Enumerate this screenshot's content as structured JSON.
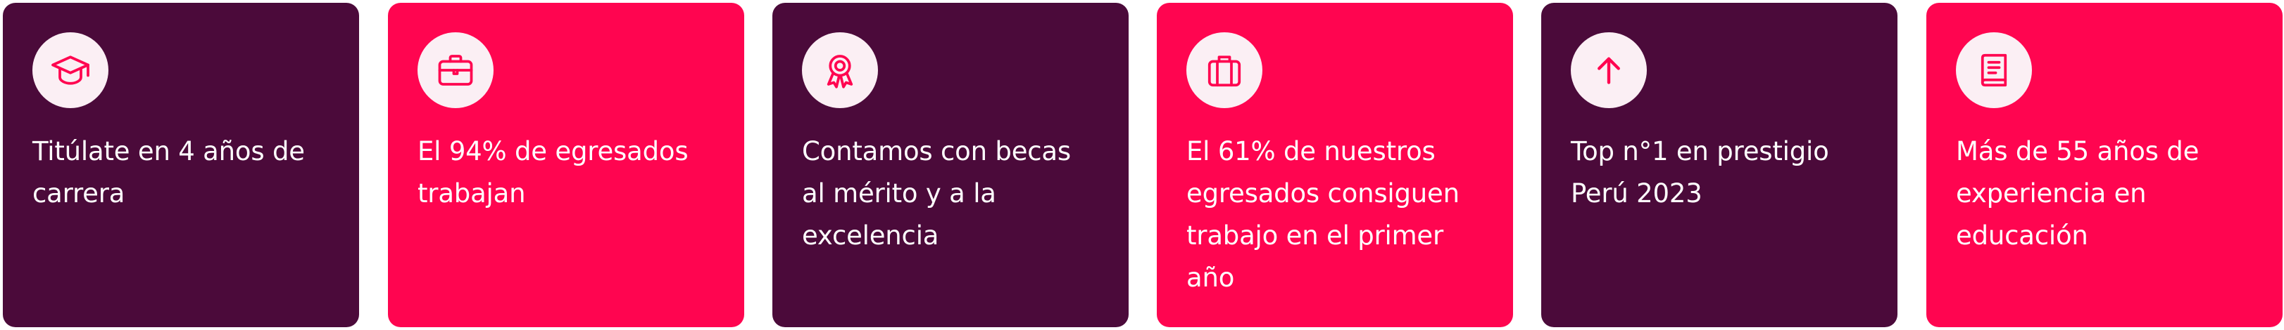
{
  "brand": {
    "dark": "#4b0a3a",
    "pink": "#ff0550",
    "icon_bg": "#fbeff4",
    "icon_stroke": "#ff0550"
  },
  "cards": [
    {
      "theme": "dark",
      "icon": "graduation-cap-icon",
      "text": "Titúlate en 4 años de\ncarrera"
    },
    {
      "theme": "pink",
      "icon": "briefcase-icon",
      "text": "El 94% de egresados\ntrabajan"
    },
    {
      "theme": "dark",
      "icon": "award-medal-icon",
      "text": "Contamos con becas\nal mérito y a la\nexcelencia"
    },
    {
      "theme": "pink",
      "icon": "suitcase-icon",
      "text": "El 61% de nuestros\negresados consiguen\ntrabajo en el primer\naño"
    },
    {
      "theme": "dark",
      "icon": "arrow-up-icon",
      "text": "Top n°1 en prestigio\nPerú 2023"
    },
    {
      "theme": "pink",
      "icon": "book-icon",
      "text": "Más de 55 años de\nexperiencia  en\neducación"
    }
  ]
}
